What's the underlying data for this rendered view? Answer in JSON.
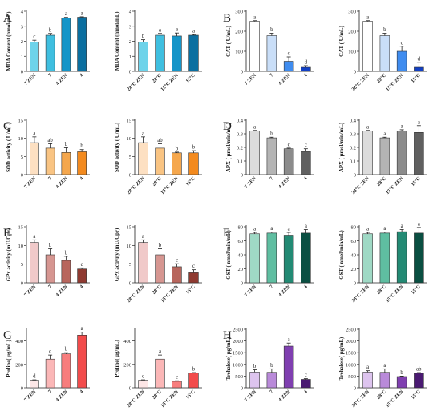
{
  "charts": [
    {
      "letter": "A",
      "panel": "A",
      "ylabel": "MDA Content (nmol/mL)",
      "ylim": [
        0,
        4
      ],
      "yticks": [
        0,
        1,
        2,
        3,
        4
      ],
      "categories": [
        "7 ZEN",
        "7",
        "4 ZEN",
        "4"
      ],
      "values": [
        1.95,
        2.4,
        3.55,
        3.6
      ],
      "errors": [
        0.12,
        0.12,
        0.04,
        0.03
      ],
      "letters": [
        "c",
        "b",
        "a",
        "a"
      ],
      "colors": [
        "#6dd3ea",
        "#3fbfe0",
        "#1595c8",
        "#0b6fa0"
      ]
    },
    {
      "letter": "",
      "panel": "A",
      "ylabel": "MDA Content (nmol/mL)",
      "ylim": [
        0,
        4
      ],
      "yticks": [
        0,
        1,
        2,
        3,
        4
      ],
      "categories": [
        "28°C ZEN",
        "28°C",
        "15°C ZEN",
        "15°C"
      ],
      "values": [
        1.95,
        2.4,
        2.35,
        2.4
      ],
      "errors": [
        0.15,
        0.12,
        0.2,
        0.05
      ],
      "letters": [
        "b",
        "a",
        "a",
        "a"
      ],
      "colors": [
        "#6dd3ea",
        "#3fbfe0",
        "#1595c8",
        "#0b6fa0"
      ]
    },
    {
      "letter": "B",
      "panel": "B",
      "ylabel": "CAT ( U/mL)",
      "ylim": [
        0,
        300
      ],
      "yticks": [
        0,
        100,
        200,
        300
      ],
      "categories": [
        "7 ZEN",
        "7",
        "4 ZEN",
        "4"
      ],
      "values": [
        250,
        178,
        50,
        20
      ],
      "errors": [
        3,
        12,
        22,
        8
      ],
      "letters": [
        "a",
        "b",
        "c",
        "d"
      ],
      "colors": [
        "#ffffff",
        "#c9def8",
        "#3f8cef",
        "#1240c4"
      ]
    },
    {
      "letter": "",
      "panel": "B",
      "ylabel": "CAT ( U/mL)",
      "ylim": [
        0,
        300
      ],
      "yticks": [
        0,
        100,
        200,
        300
      ],
      "categories": [
        "28°C ZEN",
        "28°C",
        "15°C ZEN",
        "15°C"
      ],
      "values": [
        250,
        178,
        100,
        20
      ],
      "errors": [
        3,
        12,
        25,
        25
      ],
      "letters": [
        "a",
        "b",
        "c",
        "d"
      ],
      "colors": [
        "#ffffff",
        "#c9def8",
        "#3f8cef",
        "#1240c4"
      ]
    },
    {
      "letter": "C",
      "panel": "C",
      "ylabel": "SOD activity ( U/mL)",
      "ylim": [
        0,
        15
      ],
      "yticks": [
        0,
        5,
        10,
        15
      ],
      "categories": [
        "7 ZEN",
        "7",
        "4 ZEN",
        "4"
      ],
      "values": [
        8.8,
        7.3,
        6.1,
        6.3
      ],
      "errors": [
        1.6,
        1.2,
        1.3,
        0.6
      ],
      "letters": [
        "a",
        "ab",
        "b",
        "b"
      ],
      "colors": [
        "#fde0c2",
        "#f9c483",
        "#f5a74d",
        "#f38a1e"
      ]
    },
    {
      "letter": "",
      "panel": "C",
      "ylabel": "SOD activity ( U/mL)",
      "ylim": [
        0,
        15
      ],
      "yticks": [
        0,
        5,
        10,
        15
      ],
      "categories": [
        "28°C ZEN",
        "28°C",
        "15°C ZEN",
        "15°C"
      ],
      "values": [
        8.8,
        7.3,
        6.0,
        6.0
      ],
      "errors": [
        1.6,
        1.2,
        0.2,
        0.6
      ],
      "letters": [
        "a",
        "ab",
        "b",
        "b"
      ],
      "colors": [
        "#fde0c2",
        "#f9c483",
        "#f5a74d",
        "#f38a1e"
      ]
    },
    {
      "letter": "D",
      "panel": "D",
      "ylabel": "APX ( μmol/min/mL)",
      "ylim": [
        0,
        0.4
      ],
      "yticks": [
        0,
        0.1,
        0.2,
        0.3,
        0.4
      ],
      "categories": [
        "7 ZEN",
        "7",
        "4 ZEN",
        "4"
      ],
      "values": [
        0.32,
        0.27,
        0.19,
        0.17
      ],
      "errors": [
        0.005,
        0.005,
        0.005,
        0.02
      ],
      "letters": [
        "a",
        "b",
        "c",
        "c"
      ],
      "colors": [
        "#dcdcdc",
        "#b4b4b4",
        "#8c8c8c",
        "#606060"
      ]
    },
    {
      "letter": "",
      "panel": "D",
      "ylabel": "APX ( μmol/min/mL)",
      "ylim": [
        0,
        0.4
      ],
      "yticks": [
        0,
        0.1,
        0.2,
        0.3,
        0.4
      ],
      "categories": [
        "28°C ZEN",
        "28°C",
        "15°C ZEN",
        "15°C"
      ],
      "values": [
        0.32,
        0.27,
        0.32,
        0.31
      ],
      "errors": [
        0.005,
        0.005,
        0.01,
        0.05
      ],
      "letters": [
        "a",
        "a",
        "a",
        "a"
      ],
      "colors": [
        "#dcdcdc",
        "#b4b4b4",
        "#8c8c8c",
        "#606060"
      ]
    },
    {
      "letter": "E",
      "panel": "E",
      "ylabel": "GPx activity (mU/Cpr)",
      "ylim": [
        0,
        15
      ],
      "yticks": [
        0,
        5,
        10,
        15
      ],
      "categories": [
        "7 ZEN",
        "7",
        "4 ZEN",
        "4"
      ],
      "values": [
        10.8,
        7.5,
        6.0,
        3.7
      ],
      "errors": [
        0.7,
        1.6,
        1.1,
        0.3
      ],
      "letters": [
        "a",
        "b",
        "b",
        "c"
      ],
      "colors": [
        "#f0c9c9",
        "#d69691",
        "#b8665d",
        "#8f3a31"
      ]
    },
    {
      "letter": "",
      "panel": "E",
      "ylabel": "GPx activity (mU/Cpr)",
      "ylim": [
        0,
        15
      ],
      "yticks": [
        0,
        5,
        10,
        15
      ],
      "categories": [
        "28°C ZEN",
        "28°C",
        "15°C ZEN",
        "15°C"
      ],
      "values": [
        10.8,
        7.5,
        4.3,
        2.7
      ],
      "errors": [
        0.7,
        1.6,
        0.8,
        0.8
      ],
      "letters": [
        "a",
        "b",
        "c",
        "c"
      ],
      "colors": [
        "#f0c9c9",
        "#d69691",
        "#b8665d",
        "#8f3a31"
      ]
    },
    {
      "letter": "F",
      "panel": "F",
      "ylabel": "GST ( nmol/min/mL)",
      "ylim": [
        0,
        80
      ],
      "yticks": [
        0,
        20,
        40,
        60,
        80
      ],
      "categories": [
        "7 ZEN",
        "7",
        "4 ZEN",
        "4"
      ],
      "values": [
        70,
        71,
        68,
        71
      ],
      "errors": [
        2,
        1.5,
        4,
        5
      ],
      "letters": [
        "a",
        "a",
        "a",
        "a"
      ],
      "colors": [
        "#9fd9c5",
        "#5fbea1",
        "#238a74",
        "#0a4f42"
      ]
    },
    {
      "letter": "",
      "panel": "F",
      "ylabel": "GST ( nmol/min/mL)",
      "ylim": [
        0,
        80
      ],
      "yticks": [
        0,
        20,
        40,
        60,
        80
      ],
      "categories": [
        "28°C ZEN",
        "28°C",
        "15°C ZEN",
        "15°C"
      ],
      "values": [
        70,
        71,
        73,
        71
      ],
      "errors": [
        2,
        1.5,
        3,
        8
      ],
      "letters": [
        "a",
        "a",
        "a",
        "a"
      ],
      "colors": [
        "#9fd9c5",
        "#5fbea1",
        "#238a74",
        "#0a4f42"
      ]
    },
    {
      "letter": "G",
      "panel": "G",
      "ylabel": "Proline( μg/mL)",
      "ylim": [
        0,
        500
      ],
      "yticks": [
        0,
        200,
        400
      ],
      "categories": [
        "7 ZEN",
        "7",
        "4 ZEN",
        "4"
      ],
      "values": [
        65,
        245,
        290,
        450
      ],
      "errors": [
        3,
        35,
        10,
        25
      ],
      "letters": [
        "d",
        "c",
        "b",
        "a"
      ],
      "colors": [
        "#fde6e6",
        "#fbb7b7",
        "#f77d7d",
        "#f24b4b"
      ]
    },
    {
      "letter": "",
      "panel": "G",
      "ylabel": "Proline( μg/mL)",
      "ylim": [
        0,
        500
      ],
      "yticks": [
        0,
        200,
        400
      ],
      "categories": [
        "28°C ZEN",
        "28°C",
        "15°C ZEN",
        "15°C"
      ],
      "values": [
        65,
        245,
        55,
        125
      ],
      "errors": [
        3,
        35,
        5,
        5
      ],
      "letters": [
        "c",
        "a",
        "c",
        "b"
      ],
      "colors": [
        "#fde6e6",
        "#fbb7b7",
        "#f77d7d",
        "#f24b4b"
      ]
    },
    {
      "letter": "H",
      "panel": "H",
      "ylabel": "Trehalose( μg/mL)",
      "ylim": [
        0,
        2500
      ],
      "yticks": [
        0,
        500,
        1000,
        1500,
        2000,
        2500
      ],
      "categories": [
        "7 ZEN",
        "7",
        "4 ZEN",
        "4"
      ],
      "values": [
        670,
        660,
        1780,
        360
      ],
      "errors": [
        100,
        150,
        130,
        30
      ],
      "letters": [
        "b",
        "b",
        "a",
        "c"
      ],
      "colors": [
        "#ddc4ee",
        "#b98ad9",
        "#7f3fb0",
        "#4a1a72"
      ]
    },
    {
      "letter": "",
      "panel": "H",
      "ylabel": "Trehalose( μg/mL)",
      "ylim": [
        0,
        2500
      ],
      "yticks": [
        0,
        500,
        1000,
        1500,
        2000,
        2500
      ],
      "categories": [
        "28°C ZEN",
        "28°C",
        "15°C ZEN",
        "15°C"
      ],
      "values": [
        670,
        660,
        480,
        620
      ],
      "errors": [
        60,
        150,
        20,
        30
      ],
      "letters": [
        "a",
        "a",
        "b",
        "ab"
      ],
      "colors": [
        "#ddc4ee",
        "#b98ad9",
        "#7f3fb0",
        "#4a1a72"
      ]
    }
  ],
  "chart_data": [
    {
      "type": "bar",
      "panel": "A",
      "ylabel": "MDA Content (nmol/mL)",
      "ylim": [
        0,
        4
      ],
      "categories": [
        "7 ZEN",
        "7",
        "4 ZEN",
        "4"
      ],
      "values": [
        1.95,
        2.4,
        3.55,
        3.6
      ]
    },
    {
      "type": "bar",
      "panel": "A",
      "ylabel": "MDA Content (nmol/mL)",
      "ylim": [
        0,
        4
      ],
      "categories": [
        "28°C ZEN",
        "28°C",
        "15°C ZEN",
        "15°C"
      ],
      "values": [
        1.95,
        2.4,
        2.35,
        2.4
      ]
    },
    {
      "type": "bar",
      "panel": "B",
      "ylabel": "CAT ( U/mL)",
      "ylim": [
        0,
        300
      ],
      "categories": [
        "7 ZEN",
        "7",
        "4 ZEN",
        "4"
      ],
      "values": [
        250,
        178,
        50,
        20
      ]
    },
    {
      "type": "bar",
      "panel": "B",
      "ylabel": "CAT ( U/mL)",
      "ylim": [
        0,
        300
      ],
      "categories": [
        "28°C ZEN",
        "28°C",
        "15°C ZEN",
        "15°C"
      ],
      "values": [
        250,
        178,
        100,
        20
      ]
    },
    {
      "type": "bar",
      "panel": "C",
      "ylabel": "SOD activity ( U/mL)",
      "ylim": [
        0,
        15
      ],
      "categories": [
        "7 ZEN",
        "7",
        "4 ZEN",
        "4"
      ],
      "values": [
        8.8,
        7.3,
        6.1,
        6.3
      ]
    },
    {
      "type": "bar",
      "panel": "C",
      "ylabel": "SOD activity ( U/mL)",
      "ylim": [
        0,
        15
      ],
      "categories": [
        "28°C ZEN",
        "28°C",
        "15°C ZEN",
        "15°C"
      ],
      "values": [
        8.8,
        7.3,
        6.0,
        6.0
      ]
    },
    {
      "type": "bar",
      "panel": "D",
      "ylabel": "APX ( μmol/min/mL)",
      "ylim": [
        0,
        0.4
      ],
      "categories": [
        "7 ZEN",
        "7",
        "4 ZEN",
        "4"
      ],
      "values": [
        0.32,
        0.27,
        0.19,
        0.17
      ]
    },
    {
      "type": "bar",
      "panel": "D",
      "ylabel": "APX ( μmol/min/mL)",
      "ylim": [
        0,
        0.4
      ],
      "categories": [
        "28°C ZEN",
        "28°C",
        "15°C ZEN",
        "15°C"
      ],
      "values": [
        0.32,
        0.27,
        0.32,
        0.31
      ]
    },
    {
      "type": "bar",
      "panel": "E",
      "ylabel": "GPx activity (mU/Cpr)",
      "ylim": [
        0,
        15
      ],
      "categories": [
        "7 ZEN",
        "7",
        "4 ZEN",
        "4"
      ],
      "values": [
        10.8,
        7.5,
        6.0,
        3.7
      ]
    },
    {
      "type": "bar",
      "panel": "E",
      "ylabel": "GPx activity (mU/Cpr)",
      "ylim": [
        0,
        15
      ],
      "categories": [
        "28°C ZEN",
        "28°C",
        "15°C ZEN",
        "15°C"
      ],
      "values": [
        10.8,
        7.5,
        4.3,
        2.7
      ]
    },
    {
      "type": "bar",
      "panel": "F",
      "ylabel": "GST ( nmol/min/mL)",
      "ylim": [
        0,
        80
      ],
      "categories": [
        "7 ZEN",
        "7",
        "4 ZEN",
        "4"
      ],
      "values": [
        70,
        71,
        68,
        71
      ]
    },
    {
      "type": "bar",
      "panel": "F",
      "ylabel": "GST ( nmol/min/mL)",
      "ylim": [
        0,
        80
      ],
      "categories": [
        "28°C ZEN",
        "28°C",
        "15°C ZEN",
        "15°C"
      ],
      "values": [
        70,
        71,
        73,
        71
      ]
    },
    {
      "type": "bar",
      "panel": "G",
      "ylabel": "Proline( μg/mL)",
      "ylim": [
        0,
        500
      ],
      "categories": [
        "7 ZEN",
        "7",
        "4 ZEN",
        "4"
      ],
      "values": [
        65,
        245,
        290,
        450
      ]
    },
    {
      "type": "bar",
      "panel": "G",
      "ylabel": "Proline( μg/mL)",
      "ylim": [
        0,
        500
      ],
      "categories": [
        "28°C ZEN",
        "28°C",
        "15°C ZEN",
        "15°C"
      ],
      "values": [
        65,
        245,
        55,
        125
      ]
    },
    {
      "type": "bar",
      "panel": "H",
      "ylabel": "Trehalose( μg/mL)",
      "ylim": [
        0,
        2500
      ],
      "categories": [
        "7 ZEN",
        "7",
        "4 ZEN",
        "4"
      ],
      "values": [
        670,
        660,
        1780,
        360
      ]
    },
    {
      "type": "bar",
      "panel": "H",
      "ylabel": "Trehalose( μg/mL)",
      "ylim": [
        0,
        2500
      ],
      "categories": [
        "28°C ZEN",
        "28°C",
        "15°C ZEN",
        "15°C"
      ],
      "values": [
        670,
        660,
        480,
        620
      ]
    }
  ]
}
